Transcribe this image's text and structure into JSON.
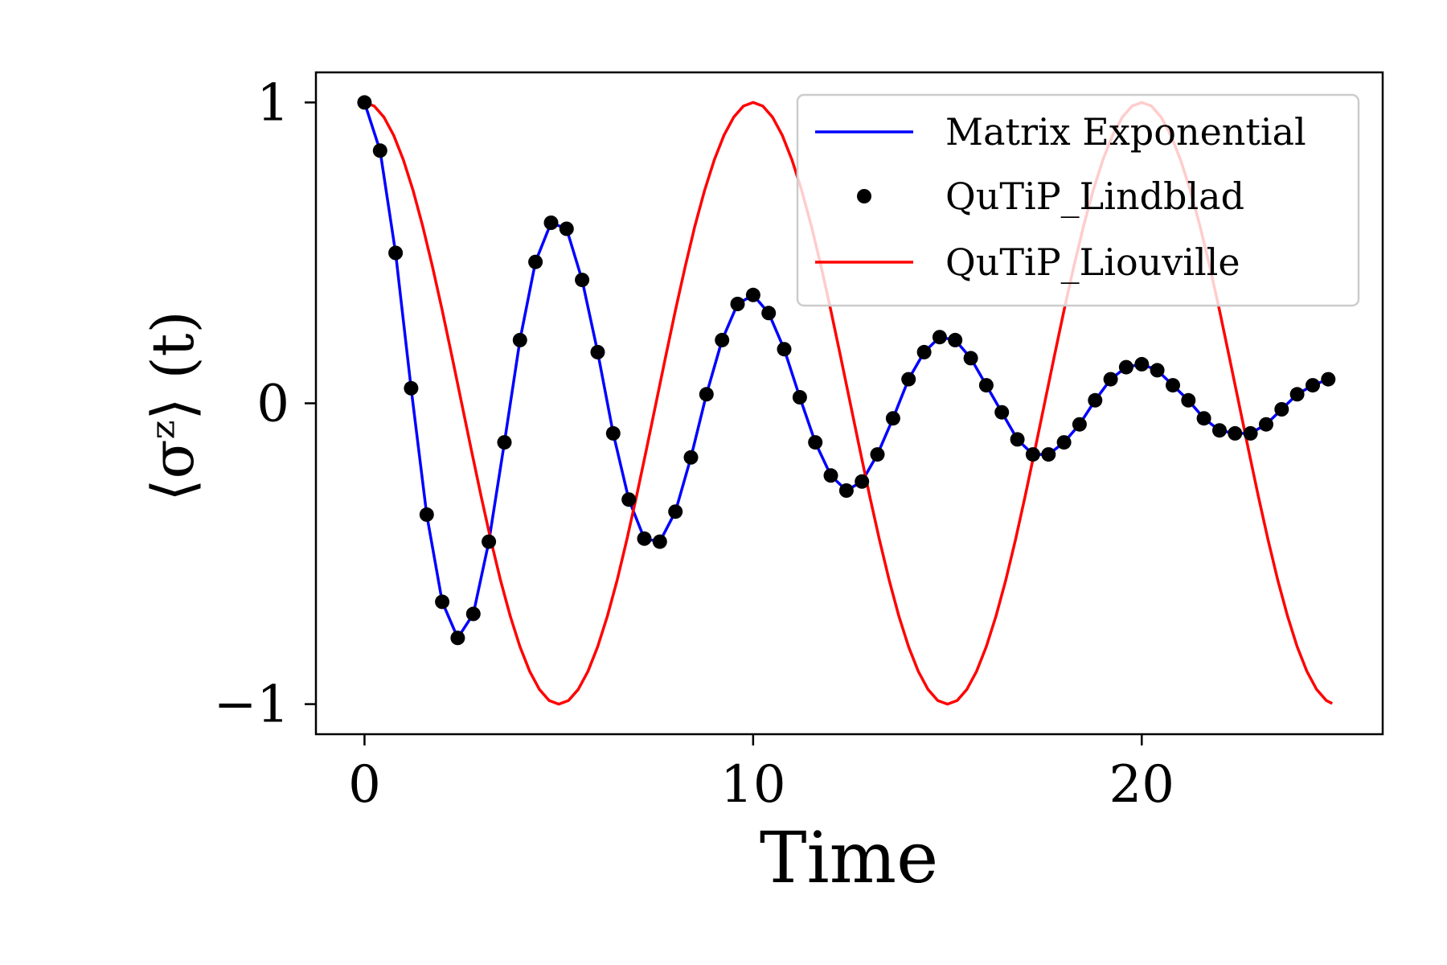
{
  "chart_data": {
    "type": "line",
    "xlabel": "Time",
    "ylabel": "⟨σᶻ⟩ (t)",
    "xlim": [
      -1.25,
      26.2
    ],
    "ylim": [
      -1.1,
      1.1
    ],
    "x_ticks": [
      0,
      10,
      20
    ],
    "x_tick_labels": [
      "0",
      "10",
      "20"
    ],
    "y_ticks": [
      1,
      0,
      -1
    ],
    "y_tick_labels": [
      "1",
      "0",
      "−1"
    ],
    "grid": false,
    "legend_position": "top-right",
    "series": [
      {
        "name": "Matrix Exponential",
        "style": "line",
        "color": "#0000ff",
        "x": [
          0,
          0.4,
          0.8,
          1.2,
          1.6,
          2.0,
          2.4,
          2.8,
          3.2,
          3.6,
          4.0,
          4.4,
          4.8,
          5.2,
          5.6,
          6.0,
          6.4,
          6.8,
          7.2,
          7.6,
          8.0,
          8.4,
          8.8,
          9.2,
          9.6,
          10.0,
          10.4,
          10.8,
          11.2,
          11.6,
          12.0,
          12.4,
          12.8,
          13.2,
          13.6,
          14.0,
          14.4,
          14.8,
          15.2,
          15.6,
          16.0,
          16.4,
          16.8,
          17.2,
          17.6,
          18.0,
          18.4,
          18.8,
          19.2,
          19.6,
          20.0,
          20.4,
          20.8,
          21.2,
          21.6,
          22.0,
          22.4,
          22.8,
          23.2,
          23.6,
          24.0,
          24.4,
          24.8
        ],
        "y": [
          1.0,
          0.84,
          0.5,
          0.05,
          -0.37,
          -0.66,
          -0.78,
          -0.7,
          -0.46,
          -0.13,
          0.21,
          0.47,
          0.6,
          0.58,
          0.41,
          0.17,
          -0.1,
          -0.32,
          -0.45,
          -0.46,
          -0.36,
          -0.18,
          0.03,
          0.21,
          0.33,
          0.36,
          0.3,
          0.18,
          0.02,
          -0.13,
          -0.24,
          -0.29,
          -0.26,
          -0.17,
          -0.05,
          0.08,
          0.17,
          0.22,
          0.21,
          0.15,
          0.06,
          -0.03,
          -0.12,
          -0.17,
          -0.17,
          -0.13,
          -0.07,
          0.01,
          0.08,
          0.12,
          0.13,
          0.11,
          0.06,
          0.01,
          -0.05,
          -0.09,
          -0.1,
          -0.1,
          -0.07,
          -0.02,
          0.03,
          0.06,
          0.08
        ]
      },
      {
        "name": "QuTiP_Lindblad",
        "style": "markers",
        "color": "#000000",
        "x": [
          0,
          0.4,
          0.8,
          1.2,
          1.6,
          2.0,
          2.4,
          2.8,
          3.2,
          3.6,
          4.0,
          4.4,
          4.8,
          5.2,
          5.6,
          6.0,
          6.4,
          6.8,
          7.2,
          7.6,
          8.0,
          8.4,
          8.8,
          9.2,
          9.6,
          10.0,
          10.4,
          10.8,
          11.2,
          11.6,
          12.0,
          12.4,
          12.8,
          13.2,
          13.6,
          14.0,
          14.4,
          14.8,
          15.2,
          15.6,
          16.0,
          16.4,
          16.8,
          17.2,
          17.6,
          18.0,
          18.4,
          18.8,
          19.2,
          19.6,
          20.0,
          20.4,
          20.8,
          21.2,
          21.6,
          22.0,
          22.4,
          22.8,
          23.2,
          23.6,
          24.0,
          24.4,
          24.8
        ],
        "y": [
          1.0,
          0.84,
          0.5,
          0.05,
          -0.37,
          -0.66,
          -0.78,
          -0.7,
          -0.46,
          -0.13,
          0.21,
          0.47,
          0.6,
          0.58,
          0.41,
          0.17,
          -0.1,
          -0.32,
          -0.45,
          -0.46,
          -0.36,
          -0.18,
          0.03,
          0.21,
          0.33,
          0.36,
          0.3,
          0.18,
          0.02,
          -0.13,
          -0.24,
          -0.29,
          -0.26,
          -0.17,
          -0.05,
          0.08,
          0.17,
          0.22,
          0.21,
          0.15,
          0.06,
          -0.03,
          -0.12,
          -0.17,
          -0.17,
          -0.13,
          -0.07,
          0.01,
          0.08,
          0.12,
          0.13,
          0.11,
          0.06,
          0.01,
          -0.05,
          -0.09,
          -0.1,
          -0.1,
          -0.07,
          -0.02,
          0.03,
          0.06,
          0.08
        ]
      },
      {
        "name": "QuTiP_Liouville",
        "style": "line",
        "color": "#ff0000",
        "x": [
          0,
          0.25,
          0.5,
          0.75,
          1.0,
          1.25,
          1.5,
          1.75,
          2.0,
          2.25,
          2.5,
          2.75,
          3.0,
          3.25,
          3.5,
          3.75,
          4.0,
          4.25,
          4.5,
          4.75,
          5.0,
          5.25,
          5.5,
          5.75,
          6.0,
          6.25,
          6.5,
          6.75,
          7.0,
          7.25,
          7.5,
          7.75,
          8.0,
          8.25,
          8.5,
          8.75,
          9.0,
          9.25,
          9.5,
          9.75,
          10.0,
          10.25,
          10.5,
          10.75,
          11.0,
          11.25,
          11.5,
          11.75,
          12.0,
          12.25,
          12.5,
          12.75,
          13.0,
          13.25,
          13.5,
          13.75,
          14.0,
          14.25,
          14.5,
          14.75,
          15.0,
          15.25,
          15.5,
          15.75,
          16.0,
          16.25,
          16.5,
          16.75,
          17.0,
          17.25,
          17.5,
          17.75,
          18.0,
          18.25,
          18.5,
          18.75,
          19.0,
          19.25,
          19.5,
          19.75,
          20.0,
          20.25,
          20.5,
          20.75,
          21.0,
          21.25,
          21.5,
          21.75,
          22.0,
          22.25,
          22.5,
          22.75,
          23.0,
          23.25,
          23.5,
          23.75,
          24.0,
          24.25,
          24.5,
          24.75,
          24.9
        ],
        "y": [
          1.0,
          0.988,
          0.951,
          0.891,
          0.809,
          0.707,
          0.588,
          0.454,
          0.309,
          0.156,
          0.0,
          -0.156,
          -0.309,
          -0.454,
          -0.588,
          -0.707,
          -0.809,
          -0.891,
          -0.951,
          -0.988,
          -1.0,
          -0.988,
          -0.951,
          -0.891,
          -0.809,
          -0.707,
          -0.588,
          -0.454,
          -0.309,
          -0.156,
          0.0,
          0.156,
          0.309,
          0.454,
          0.588,
          0.707,
          0.809,
          0.891,
          0.951,
          0.988,
          1.0,
          0.988,
          0.951,
          0.891,
          0.809,
          0.707,
          0.588,
          0.454,
          0.309,
          0.156,
          0.0,
          -0.156,
          -0.309,
          -0.454,
          -0.588,
          -0.707,
          -0.809,
          -0.891,
          -0.951,
          -0.988,
          -1.0,
          -0.988,
          -0.951,
          -0.891,
          -0.809,
          -0.707,
          -0.588,
          -0.454,
          -0.309,
          -0.156,
          0.0,
          0.156,
          0.309,
          0.454,
          0.588,
          0.707,
          0.809,
          0.891,
          0.951,
          0.988,
          1.0,
          0.988,
          0.951,
          0.891,
          0.809,
          0.707,
          0.588,
          0.454,
          0.309,
          0.156,
          0.0,
          -0.156,
          -0.309,
          -0.454,
          -0.588,
          -0.707,
          -0.809,
          -0.891,
          -0.951,
          -0.988,
          -0.998
        ]
      }
    ]
  }
}
